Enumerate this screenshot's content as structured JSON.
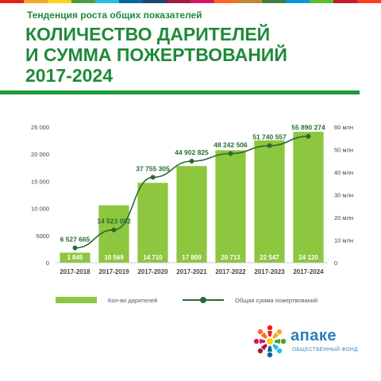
{
  "header": {
    "subtitle": "Тенденция роста общих показателей",
    "title_line1": "КОЛИЧЕСТВО ДАРИТЕЛЕЙ",
    "title_line2": "И СУММА ПОЖЕРТВОВАНИЙ",
    "title_line3": "2017-2024"
  },
  "colors": {
    "bar": "#8dc63f",
    "line": "#2a6a33",
    "title": "#1f8a3a",
    "rule": "#1e9a3c",
    "topbar": [
      "#e2231a",
      "#f7a823",
      "#fcd116",
      "#4c9f38",
      "#26bde2",
      "#00689d",
      "#19486a",
      "#a21942",
      "#dd1367",
      "#fd6925",
      "#bf8b2e",
      "#3f7e44",
      "#0a97d9",
      "#56c02b",
      "#c5192d",
      "#ff3a21"
    ]
  },
  "chart_data": {
    "type": "bar+line",
    "categories": [
      "2017-2018",
      "2017-2019",
      "2017-2020",
      "2017-2021",
      "2017-2022",
      "2017-2023",
      "2017-2024"
    ],
    "series": [
      {
        "name": "Кол-во дарителей",
        "type": "bar",
        "axis": "left",
        "values": [
          1845,
          10569,
          14710,
          17809,
          20713,
          22547,
          24120
        ],
        "labels": [
          "1 845",
          "10 569",
          "14 710",
          "17 809",
          "20 713",
          "22 547",
          "24 120"
        ]
      },
      {
        "name": "Общая сумма пожертвований",
        "type": "line",
        "axis": "right",
        "values": [
          6527665,
          14523052,
          37755305,
          44902825,
          48242506,
          51740557,
          55890274
        ],
        "labels": [
          "6 527 665",
          "14 523 052",
          "37 755 305",
          "44 902 825",
          "48 242 506",
          "51 740 557",
          "55 890 274"
        ]
      }
    ],
    "y_left": {
      "min": 0,
      "max": 25000,
      "ticks": [
        0,
        5000,
        10000,
        15000,
        20000,
        25000
      ],
      "tick_labels": [
        "0",
        "5000",
        "10 000",
        "15 000",
        "20 000",
        "25 000"
      ]
    },
    "y_right": {
      "min": 0,
      "max": 60000000,
      "ticks": [
        0,
        10000000,
        20000000,
        30000000,
        40000000,
        50000000,
        60000000
      ],
      "tick_labels": [
        "0",
        "10 млн",
        "20 млн",
        "30 млн",
        "40 млн",
        "50 млн",
        "60 млн"
      ]
    },
    "grid": false,
    "legend_position": "bottom"
  },
  "legend": {
    "bar_label": "Кол-во дарителей",
    "line_label": "Общая сумма пожертвований"
  },
  "logo": {
    "name": "апаке",
    "tagline": "ОБЩЕСТВЕННЫЙ ФОНД",
    "icon": "colorful-people-circle-icon"
  }
}
